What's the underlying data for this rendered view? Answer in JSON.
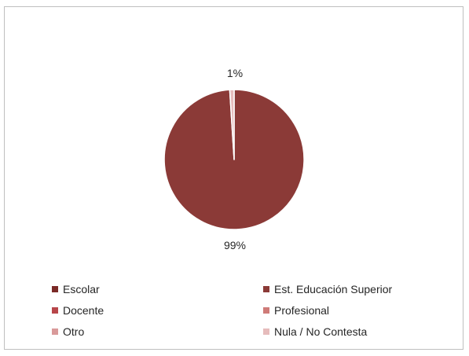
{
  "chart_data": {
    "type": "pie",
    "title": "",
    "data_labels": [
      "99%",
      "1%"
    ],
    "slices": [
      {
        "label": "Escolar",
        "value": 0,
        "color": "#7b2a27"
      },
      {
        "label": "Est. Educación Superior",
        "value": 99,
        "color": "#8b3a37"
      },
      {
        "label": "Docente",
        "value": 0,
        "color": "#b8464a"
      },
      {
        "label": "Profesional",
        "value": 0,
        "color": "#cf7b78"
      },
      {
        "label": "Otro",
        "value": 0,
        "color": "#d99a9a"
      },
      {
        "label": "Nula / No Contesta",
        "value": 1,
        "color": "#e6bcbc"
      }
    ],
    "legend": {
      "position": "bottom",
      "entries": [
        "Escolar",
        "Est. Educación Superior",
        "Docente",
        "Profesional",
        "Otro",
        "Nula / No Contesta"
      ]
    }
  }
}
